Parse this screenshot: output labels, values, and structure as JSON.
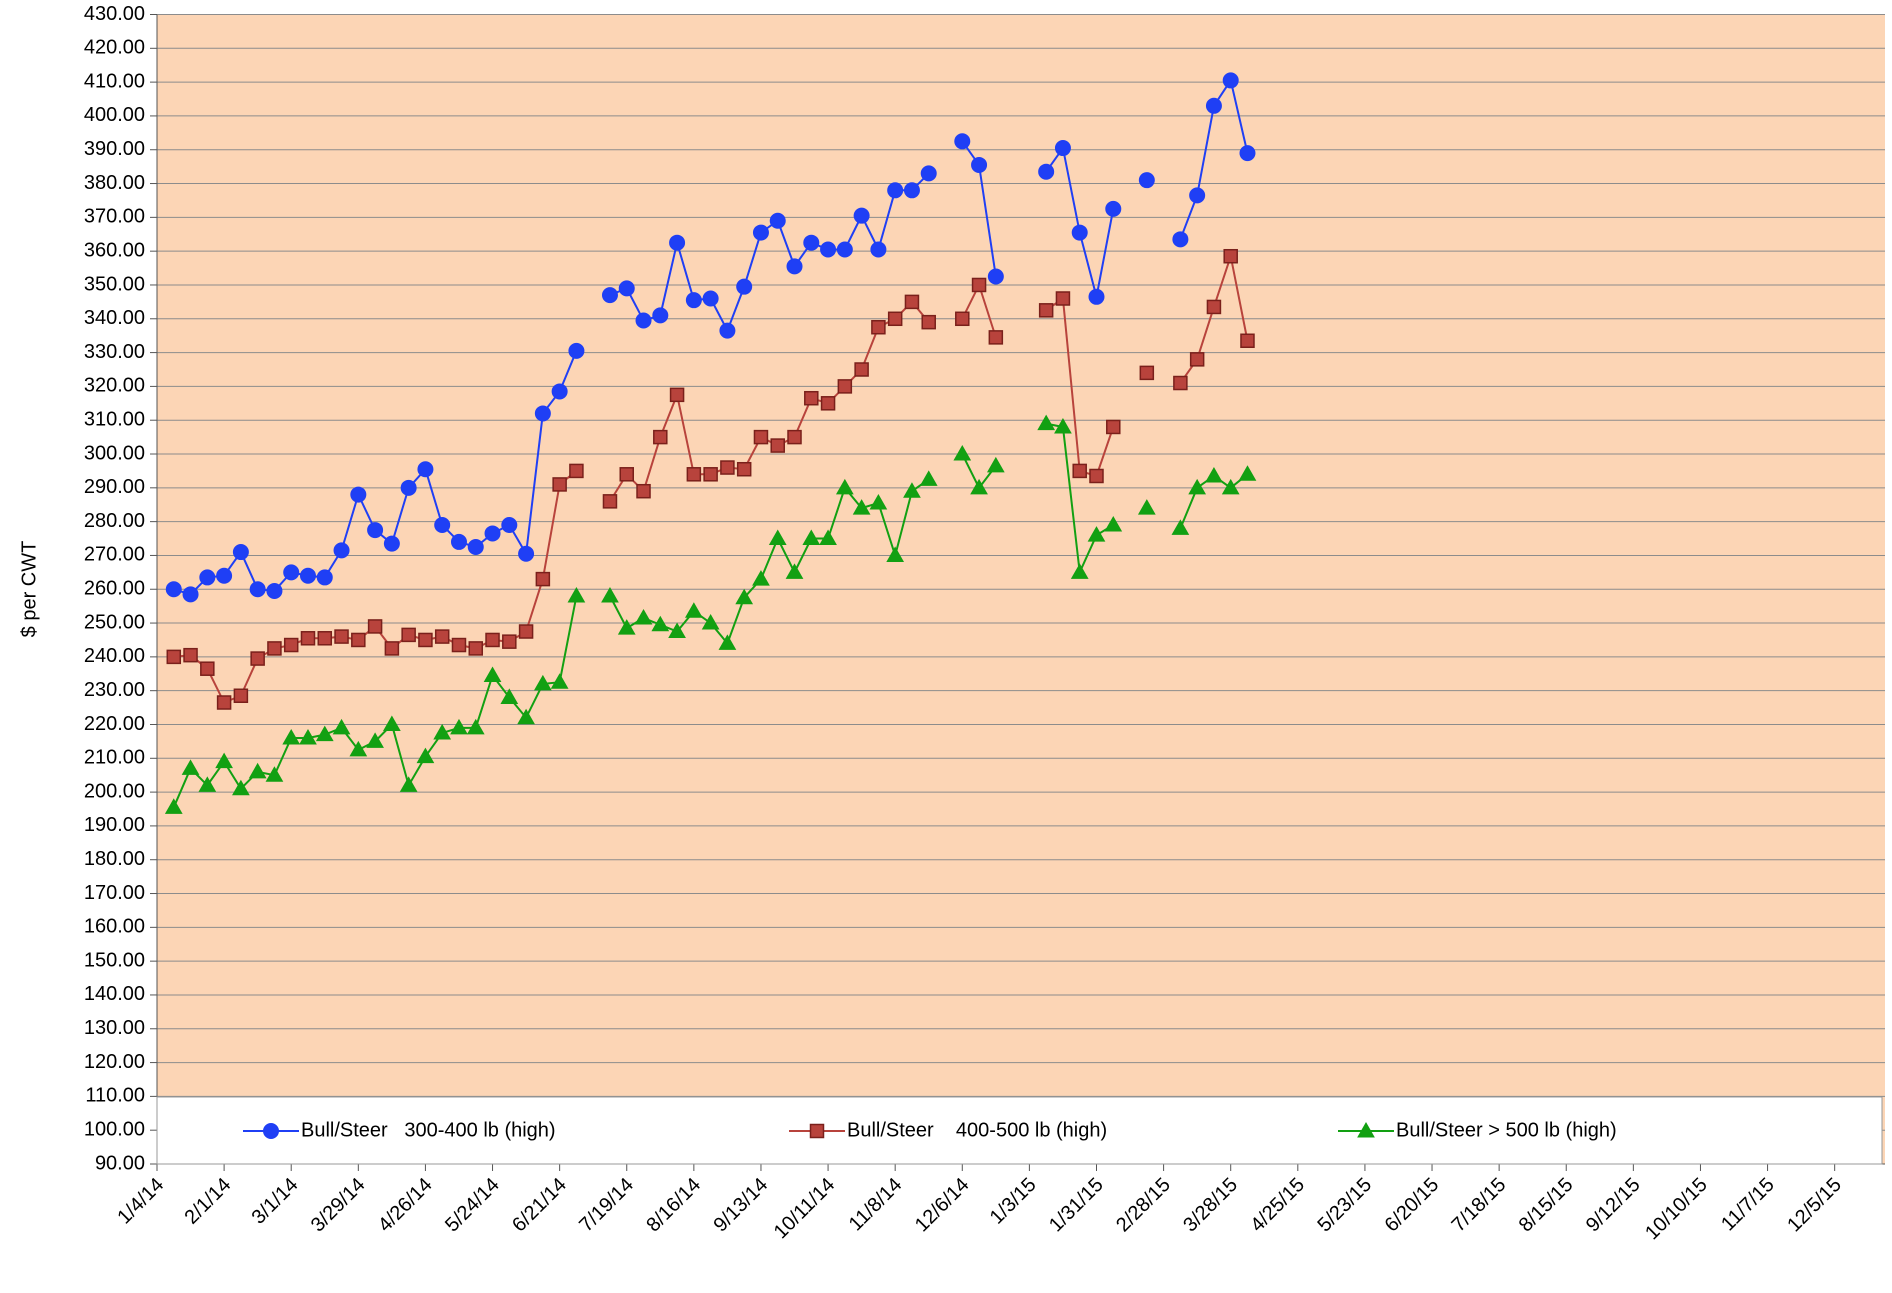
{
  "chart_data": {
    "type": "line",
    "y_label": "$ per CWT",
    "x": [
      "1/11/14",
      "1/18/14",
      "1/25/14",
      "2/1/14",
      "2/8/14",
      "2/15/14",
      "2/22/14",
      "3/1/14",
      "3/8/14",
      "3/15/14",
      "3/22/14",
      "3/29/14",
      "4/5/14",
      "4/12/14",
      "4/19/14",
      "4/26/14",
      "5/3/14",
      "5/10/14",
      "5/17/14",
      "5/24/14",
      "5/31/14",
      "6/7/14",
      "6/14/14",
      "6/21/14",
      "6/28/14",
      "7/5/14",
      "7/12/14",
      "7/19/14",
      "7/26/14",
      "8/2/14",
      "8/9/14",
      "8/16/14",
      "8/23/14",
      "8/30/14",
      "9/6/14",
      "9/13/14",
      "9/20/14",
      "9/27/14",
      "10/4/14",
      "10/11/14",
      "10/18/14",
      "10/25/14",
      "11/1/14",
      "11/8/14",
      "11/15/14",
      "11/22/14",
      "11/29/14",
      "12/6/14",
      "12/13/14",
      "12/20/14",
      "12/27/14",
      "1/3/15",
      "1/10/15",
      "1/17/15",
      "1/24/15",
      "1/31/15",
      "2/7/15",
      "2/14/15",
      "2/21/15",
      "2/28/15",
      "3/7/15",
      "3/14/15",
      "3/21/15",
      "3/28/15",
      "4/4/15"
    ],
    "series": [
      {
        "name": "Bull/Steer   300-400 lb (high)",
        "color": "#1f3ff5",
        "marker": "circle",
        "values": [
          260,
          258.5,
          263.5,
          264,
          271,
          260,
          259.5,
          265,
          264,
          263.5,
          271.5,
          288,
          277.5,
          273.5,
          290,
          295.5,
          279,
          274,
          272.5,
          276.5,
          279,
          270.5,
          312,
          318.5,
          330.5,
          null,
          347,
          349,
          339.5,
          341,
          362.5,
          345.5,
          346,
          336.5,
          349.5,
          365.5,
          369,
          355.5,
          362.5,
          360.5,
          360.5,
          370.5,
          360.5,
          378,
          378,
          383,
          null,
          392.5,
          385.5,
          352.5,
          null,
          null,
          383.5,
          390.5,
          365.5,
          346.5,
          372.5,
          null,
          381,
          null,
          363.5,
          376.5,
          403,
          410.5,
          389
        ]
      },
      {
        "name": "Bull/Steer    400-500 lb (high)",
        "color": "#b8433c",
        "marker": "square",
        "values": [
          240,
          240.5,
          236.5,
          226.5,
          228.5,
          239.5,
          242.5,
          243.5,
          245.5,
          245.5,
          246,
          245,
          249,
          242.5,
          246.5,
          245,
          246,
          243.5,
          242.5,
          245,
          244.5,
          247.5,
          263,
          291,
          295,
          null,
          286,
          294,
          289,
          305,
          317.5,
          294,
          294,
          296,
          295.5,
          305,
          302.5,
          305,
          316.5,
          315,
          320,
          325,
          337.5,
          340,
          345,
          339,
          null,
          340,
          350,
          334.5,
          null,
          null,
          342.5,
          346,
          295,
          293.5,
          308,
          null,
          324,
          null,
          321,
          328,
          343.5,
          358.5,
          333.5
        ]
      },
      {
        "name": "Bull/Steer > 500 lb (high)",
        "color": "#12a012",
        "marker": "triangle",
        "values": [
          195.5,
          207,
          202,
          209,
          201,
          206,
          205,
          216,
          216,
          217,
          219,
          212.5,
          215,
          220,
          202,
          210.5,
          217.5,
          219,
          219,
          234.5,
          228,
          222,
          232,
          232.5,
          258,
          null,
          258,
          248.5,
          251.5,
          249.5,
          247.5,
          253.5,
          250,
          244,
          257.5,
          263,
          275,
          265,
          275,
          275,
          290,
          284,
          285.5,
          270,
          289,
          292.5,
          null,
          300,
          290,
          296.5,
          null,
          null,
          309,
          308,
          265,
          276,
          279,
          null,
          284,
          null,
          278,
          290,
          293.5,
          290,
          294
        ]
      }
    ],
    "xlim": [
      "1/4/14",
      "12/26/15"
    ],
    "xticks": [
      "1/4/14",
      "2/1/14",
      "3/1/14",
      "3/29/14",
      "4/26/14",
      "5/24/14",
      "6/21/14",
      "7/19/14",
      "8/16/14",
      "9/13/14",
      "10/11/14",
      "11/8/14",
      "12/6/14",
      "1/3/15",
      "1/31/15",
      "2/28/15",
      "3/28/15",
      "4/25/15",
      "5/23/15",
      "6/20/15",
      "7/18/15",
      "8/15/15",
      "9/12/15",
      "10/10/15",
      "11/7/15",
      "12/5/15"
    ],
    "ylim": [
      90,
      430
    ],
    "yticks": [
      {
        "value": 90,
        "label": "90.00"
      },
      {
        "value": 100,
        "label": "100.00"
      },
      {
        "value": 110,
        "label": "110.00"
      },
      {
        "value": 120,
        "label": "120.00"
      },
      {
        "value": 130,
        "label": "130.00"
      },
      {
        "value": 140,
        "label": "140.00"
      },
      {
        "value": 150,
        "label": "150.00"
      },
      {
        "value": 160,
        "label": "160.00"
      },
      {
        "value": 170,
        "label": "170.00"
      },
      {
        "value": 180,
        "label": "180.00"
      },
      {
        "value": 190,
        "label": "190.00"
      },
      {
        "value": 200,
        "label": "200.00"
      },
      {
        "value": 210,
        "label": "210.00"
      },
      {
        "value": 220,
        "label": "220.00"
      },
      {
        "value": 230,
        "label": "230.00"
      },
      {
        "value": 240,
        "label": "240.00"
      },
      {
        "value": 250,
        "label": "250.00"
      },
      {
        "value": 260,
        "label": "260.00"
      },
      {
        "value": 270,
        "label": "270.00"
      },
      {
        "value": 280,
        "label": "280.00"
      },
      {
        "value": 290,
        "label": "290.00"
      },
      {
        "value": 300,
        "label": "300.00"
      },
      {
        "value": 310,
        "label": "310.00"
      },
      {
        "value": 320,
        "label": "320.00"
      },
      {
        "value": 330,
        "label": "330.00"
      },
      {
        "value": 340,
        "label": "340.00"
      },
      {
        "value": 350,
        "label": "350.00"
      },
      {
        "value": 360,
        "label": "360.00"
      },
      {
        "value": 370,
        "label": "370.00"
      },
      {
        "value": 380,
        "label": "380.00"
      },
      {
        "value": 390,
        "label": "390.00"
      },
      {
        "value": 400,
        "label": "400.00"
      },
      {
        "value": 410,
        "label": "410.00"
      },
      {
        "value": 420,
        "label": "420.00"
      },
      {
        "value": 430,
        "label": "430.00"
      }
    ],
    "grid": true,
    "background": "#fcd5b5",
    "legend": "bottom"
  }
}
